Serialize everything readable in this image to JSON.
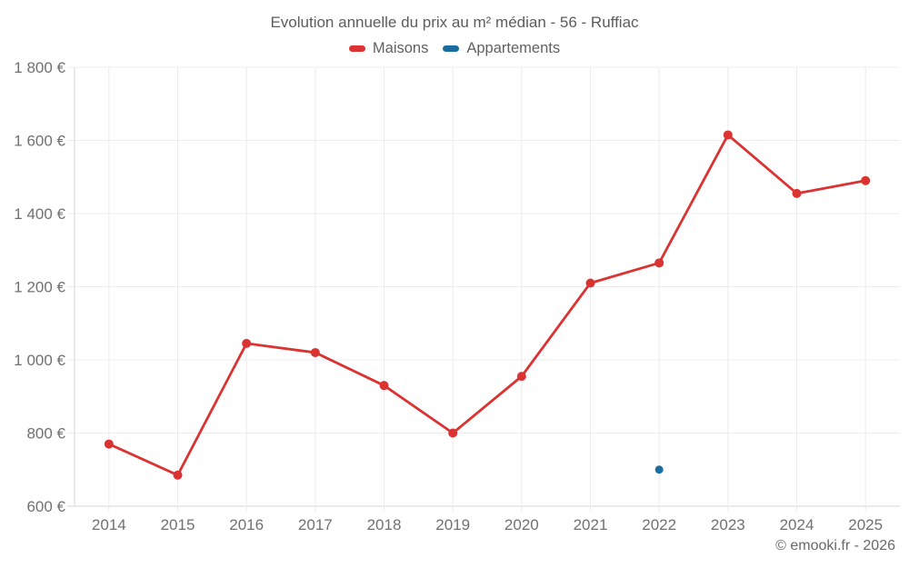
{
  "title": "Evolution annuelle du prix au m² médian - 56 - Ruffiac",
  "legend": {
    "items": [
      {
        "label": "Maisons",
        "color": "#db3232"
      },
      {
        "label": "Appartements",
        "color": "#1a6d9e"
      }
    ]
  },
  "footer": "© emooki.fr - 2026",
  "colors": {
    "maisons": "#db3232",
    "appartements": "#1a6d9e",
    "gridline": "#ececec",
    "axis_line": "#d6d6d6",
    "tick": "#cccccc",
    "axis_text": "#717171"
  },
  "chart_data": {
    "type": "line",
    "title": "Evolution annuelle du prix au m² médian - 56 - Ruffiac",
    "categories": [
      "2014",
      "2015",
      "2016",
      "2017",
      "2018",
      "2019",
      "2020",
      "2021",
      "2022",
      "2023",
      "2024",
      "2025"
    ],
    "series": [
      {
        "name": "Maisons",
        "color": "#db3232",
        "values": [
          770,
          685,
          1045,
          1020,
          930,
          800,
          955,
          1210,
          1265,
          1615,
          1455,
          1490
        ]
      },
      {
        "name": "Appartements",
        "color": "#1a6d9e",
        "values": [
          null,
          null,
          null,
          null,
          null,
          null,
          null,
          null,
          700,
          null,
          null,
          null
        ]
      }
    ],
    "xlabel": "",
    "ylabel": "",
    "ylim": [
      600,
      1800
    ],
    "y_tick_step": 200,
    "y_tick_labels": [
      "600 €",
      "800 €",
      "1 000 €",
      "1 200 €",
      "1 400 €",
      "1 600 €",
      "1 800 €"
    ],
    "grid": true,
    "legend_position": "top",
    "unit": "€"
  }
}
